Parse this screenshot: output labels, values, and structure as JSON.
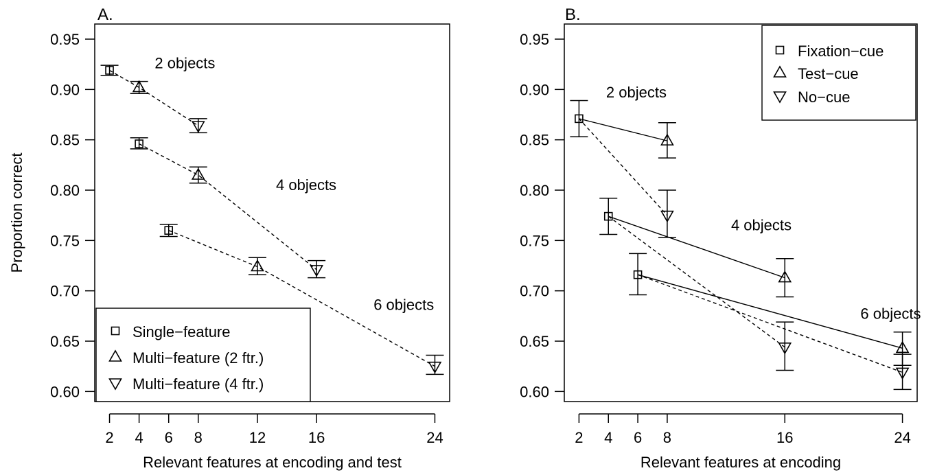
{
  "chart_data": [
    {
      "panel_label": "A.",
      "type": "line",
      "xlabel": "Relevant features at encoding and test",
      "ylabel": "Proportion correct",
      "xticks": [
        2,
        4,
        6,
        8,
        12,
        16,
        24
      ],
      "yticks": [
        "0.60",
        "0.65",
        "0.70",
        "0.75",
        "0.80",
        "0.85",
        "0.90",
        "0.95"
      ],
      "ylim": [
        0.59,
        0.965
      ],
      "grid": false,
      "legend_position": "bottom-left",
      "legend": [
        {
          "marker": "square",
          "label": "Single−feature"
        },
        {
          "marker": "triangle-up",
          "label": "Multi−feature (2 ftr.)"
        },
        {
          "marker": "triangle-down",
          "label": "Multi−feature (4 ftr.)"
        }
      ],
      "points": [
        {
          "x": 2,
          "y": 0.919,
          "lo": 0.914,
          "hi": 0.924,
          "marker": "square"
        },
        {
          "x": 4,
          "y": 0.902,
          "lo": 0.896,
          "hi": 0.908,
          "marker": "triangle-up"
        },
        {
          "x": 8,
          "y": 0.864,
          "lo": 0.857,
          "hi": 0.871,
          "marker": "triangle-down"
        },
        {
          "x": 4,
          "y": 0.846,
          "lo": 0.841,
          "hi": 0.852,
          "marker": "square"
        },
        {
          "x": 8,
          "y": 0.815,
          "lo": 0.807,
          "hi": 0.823,
          "marker": "triangle-up"
        },
        {
          "x": 16,
          "y": 0.721,
          "lo": 0.713,
          "hi": 0.73,
          "marker": "triangle-down"
        },
        {
          "x": 6,
          "y": 0.76,
          "lo": 0.754,
          "hi": 0.766,
          "marker": "square"
        },
        {
          "x": 12,
          "y": 0.724,
          "lo": 0.716,
          "hi": 0.733,
          "marker": "triangle-up"
        },
        {
          "x": 24,
          "y": 0.625,
          "lo": 0.617,
          "hi": 0.636,
          "marker": "triangle-down"
        }
      ],
      "lines": [
        {
          "style": "dashed",
          "x": [
            2,
            4,
            8
          ],
          "y": [
            0.919,
            0.902,
            0.864
          ]
        },
        {
          "style": "dashed",
          "x": [
            4,
            8,
            16
          ],
          "y": [
            0.846,
            0.815,
            0.721
          ]
        },
        {
          "style": "dashed",
          "x": [
            6,
            12,
            24
          ],
          "y": [
            0.76,
            0.724,
            0.625
          ]
        }
      ],
      "annotations": [
        {
          "text": "2 objects",
          "x": 7.1,
          "y": 0.921
        },
        {
          "text": "4 objects",
          "x": 15.3,
          "y": 0.8
        },
        {
          "text": "6 objects",
          "x": 21.9,
          "y": 0.681
        }
      ]
    },
    {
      "panel_label": "B.",
      "type": "line",
      "xlabel": "Relevant features at encoding",
      "ylabel": "",
      "xticks": [
        2,
        4,
        6,
        8,
        16,
        24
      ],
      "yticks": [
        "0.60",
        "0.65",
        "0.70",
        "0.75",
        "0.80",
        "0.85",
        "0.90",
        "0.95"
      ],
      "ylim": [
        0.59,
        0.965
      ],
      "grid": false,
      "legend_position": "top-right",
      "legend": [
        {
          "marker": "square",
          "label": "Fixation−cue"
        },
        {
          "marker": "triangle-up",
          "label": "Test−cue"
        },
        {
          "marker": "triangle-down",
          "label": "No−cue"
        }
      ],
      "points": [
        {
          "x": 2,
          "y": 0.871,
          "lo": 0.853,
          "hi": 0.889,
          "marker": "square"
        },
        {
          "x": 8,
          "y": 0.849,
          "lo": 0.832,
          "hi": 0.867,
          "marker": "triangle-up"
        },
        {
          "x": 8,
          "y": 0.775,
          "lo": 0.753,
          "hi": 0.8,
          "marker": "triangle-down"
        },
        {
          "x": 4,
          "y": 0.774,
          "lo": 0.756,
          "hi": 0.792,
          "marker": "square"
        },
        {
          "x": 16,
          "y": 0.713,
          "lo": 0.694,
          "hi": 0.732,
          "marker": "triangle-up"
        },
        {
          "x": 16,
          "y": 0.644,
          "lo": 0.621,
          "hi": 0.669,
          "marker": "triangle-down"
        },
        {
          "x": 6,
          "y": 0.716,
          "lo": 0.696,
          "hi": 0.737,
          "marker": "square"
        },
        {
          "x": 24,
          "y": 0.643,
          "lo": 0.626,
          "hi": 0.659,
          "marker": "triangle-up"
        },
        {
          "x": 24,
          "y": 0.619,
          "lo": 0.602,
          "hi": 0.637,
          "marker": "triangle-down"
        }
      ],
      "lines": [
        {
          "style": "solid",
          "x": [
            2,
            8
          ],
          "y": [
            0.871,
            0.849
          ]
        },
        {
          "style": "dashed",
          "x": [
            2,
            8
          ],
          "y": [
            0.871,
            0.775
          ]
        },
        {
          "style": "solid",
          "x": [
            4,
            16
          ],
          "y": [
            0.774,
            0.713
          ]
        },
        {
          "style": "dashed",
          "x": [
            4,
            16
          ],
          "y": [
            0.774,
            0.644
          ]
        },
        {
          "style": "solid",
          "x": [
            6,
            24
          ],
          "y": [
            0.716,
            0.643
          ]
        },
        {
          "style": "dashed",
          "x": [
            6,
            24
          ],
          "y": [
            0.716,
            0.619
          ]
        }
      ],
      "annotations": [
        {
          "text": "2 objects",
          "x": 5.9,
          "y": 0.892
        },
        {
          "text": "4 objects",
          "x": 14.4,
          "y": 0.76
        },
        {
          "text": "6 objects",
          "x": 23.2,
          "y": 0.672
        }
      ]
    }
  ]
}
